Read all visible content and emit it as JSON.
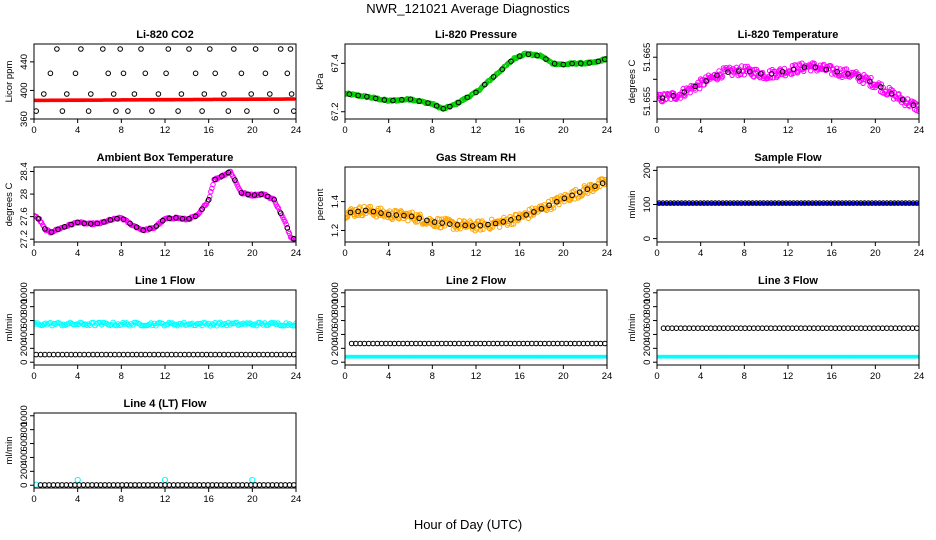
{
  "page": {
    "title": "NWR_121021  Average Diagnostics",
    "xlabel": "Hour of Day (UTC)"
  },
  "colors": {
    "red": "#ff0000",
    "green": "#00cc00",
    "magenta": "#ff00ff",
    "orange": "#ffa500",
    "blue": "#0000ff",
    "cyan": "#00ffff",
    "black": "#000000"
  },
  "chart_data": [
    {
      "id": "li820-co2",
      "type": "scatter",
      "title": "Li-820 CO2",
      "ylabel": "Licor ppm",
      "xlim": [
        0,
        24
      ],
      "ylim": [
        360,
        465
      ],
      "xticks": [
        0,
        4,
        8,
        12,
        16,
        20,
        24
      ],
      "yticks": [
        360,
        400,
        440
      ],
      "series": [
        {
          "name": "sample mean (black)",
          "color": "black",
          "shape": "circle",
          "points": [
            [
              0.2,
              371
            ],
            [
              0.9,
              395
            ],
            [
              1.5,
              424
            ],
            [
              2.1,
              458
            ],
            [
              2.6,
              371
            ],
            [
              3.0,
              395
            ],
            [
              3.8,
              424
            ],
            [
              4.3,
              458
            ],
            [
              5.0,
              371
            ],
            [
              5.2,
              395
            ],
            [
              6.3,
              458
            ],
            [
              6.8,
              424
            ],
            [
              7.3,
              395
            ],
            [
              7.5,
              371
            ],
            [
              7.9,
              458
            ],
            [
              8.2,
              424
            ],
            [
              8.6,
              371
            ],
            [
              9.2,
              395
            ],
            [
              9.8,
              458
            ],
            [
              10.2,
              424
            ],
            [
              10.8,
              371
            ],
            [
              11.4,
              395
            ],
            [
              12.1,
              424
            ],
            [
              12.3,
              458
            ],
            [
              13.2,
              371
            ],
            [
              13.5,
              395
            ],
            [
              14.2,
              458
            ],
            [
              14.8,
              424
            ],
            [
              15.4,
              371
            ],
            [
              15.6,
              395
            ],
            [
              16.1,
              458
            ],
            [
              16.6,
              424
            ],
            [
              17.4,
              395
            ],
            [
              17.8,
              371
            ],
            [
              18.3,
              458
            ],
            [
              19.0,
              424
            ],
            [
              19.5,
              371
            ],
            [
              19.9,
              395
            ],
            [
              20.3,
              458
            ],
            [
              21.2,
              424
            ],
            [
              21.6,
              395
            ],
            [
              22.2,
              371
            ],
            [
              22.6,
              458
            ],
            [
              23.2,
              424
            ],
            [
              23.5,
              458
            ],
            [
              23.6,
              395
            ],
            [
              23.8,
              371
            ]
          ]
        },
        {
          "name": "CO2 (red)",
          "color": "red",
          "shape": "dense-line",
          "from": [
            0,
            386
          ],
          "to": [
            23.8,
            388
          ]
        }
      ]
    },
    {
      "id": "li820-pressure",
      "type": "scatter",
      "title": "Li-820 Pressure",
      "ylabel": "kPa",
      "xlim": [
        0,
        24
      ],
      "ylim": [
        67.17,
        67.48
      ],
      "xticks": [
        0,
        4,
        8,
        12,
        16,
        20,
        24
      ],
      "yticks": [
        67.2,
        67.4
      ],
      "series": [
        {
          "name": "pressure (green)",
          "color": "green",
          "shape": "dense-curve",
          "curve": [
            [
              0,
              67.275
            ],
            [
              2,
              67.262
            ],
            [
              4,
              67.245
            ],
            [
              6,
              67.252
            ],
            [
              8,
              67.232
            ],
            [
              9,
              67.212
            ],
            [
              10,
              67.228
            ],
            [
              12,
              67.28
            ],
            [
              14,
              67.36
            ],
            [
              15.5,
              67.42
            ],
            [
              16.5,
              67.44
            ],
            [
              18,
              67.43
            ],
            [
              19,
              67.4
            ],
            [
              20,
              67.395
            ],
            [
              21,
              67.4
            ],
            [
              22,
              67.4
            ],
            [
              23,
              67.405
            ],
            [
              24,
              67.42
            ]
          ]
        },
        {
          "name": "sample mean (black)",
          "color": "black",
          "shape": "circle-on-curve",
          "curve_ref": "pressure (green)",
          "x": [
            0.4,
            1.2,
            2.0,
            2.8,
            3.6,
            4.4,
            5.2,
            6.0,
            6.8,
            7.6,
            8.4,
            9.0,
            9.6,
            10.4,
            11.2,
            12.0,
            12.8,
            13.6,
            14.4,
            15.2,
            16.0,
            16.8,
            17.6,
            18.4,
            19.2,
            20.0,
            20.8,
            21.6,
            22.4,
            23.2,
            23.8
          ]
        }
      ]
    },
    {
      "id": "li820-temperature",
      "type": "scatter",
      "title": "Li-820 Temperature",
      "ylabel": "degrees C",
      "xlim": [
        0,
        24
      ],
      "ylim": [
        51.651,
        51.668
      ],
      "xticks": [
        0,
        4,
        8,
        12,
        16,
        20,
        24
      ],
      "yticks": [
        51.655,
        51.66,
        51.665
      ],
      "ytick_labels": [
        "51.655",
        "",
        "51.665"
      ],
      "series": [
        {
          "name": "temperature (magenta)",
          "color": "magenta",
          "shape": "noisy-band",
          "curve": [
            [
              0,
              51.6555
            ],
            [
              2,
              51.6565
            ],
            [
              4,
              51.659
            ],
            [
              6,
              51.6615
            ],
            [
              8,
              51.662
            ],
            [
              10,
              51.661
            ],
            [
              12,
              51.662
            ],
            [
              14,
              51.663
            ],
            [
              16,
              51.662
            ],
            [
              18,
              51.661
            ],
            [
              20,
              51.659
            ],
            [
              22,
              51.656
            ],
            [
              24,
              51.6535
            ]
          ],
          "spread": 0.0022
        },
        {
          "name": "sample mean (black)",
          "color": "black",
          "shape": "circle-on-curve",
          "curve_ref": "temperature (magenta)",
          "x": [
            0.5,
            1.5,
            2.5,
            3.5,
            4.5,
            5.5,
            6.5,
            7.5,
            8.5,
            9.5,
            10.5,
            11.5,
            12.5,
            13.5,
            14.5,
            15.5,
            16.5,
            17.5,
            18.5,
            19.5,
            20.5,
            21.5,
            22.5,
            23.5
          ]
        }
      ]
    },
    {
      "id": "ambient-box-temperature",
      "type": "scatter",
      "title": "Ambient Box Temperature",
      "ylabel": "degrees C",
      "xlim": [
        0,
        24
      ],
      "ylim": [
        27.15,
        28.48
      ],
      "xticks": [
        0,
        4,
        8,
        12,
        16,
        20,
        24
      ],
      "yticks": [
        27.2,
        27.6,
        28.0,
        28.4
      ],
      "series": [
        {
          "name": "box temperature (magenta)",
          "color": "magenta",
          "shape": "dense-curve",
          "curve": [
            [
              0,
              27.62
            ],
            [
              0.5,
              27.55
            ],
            [
              1,
              27.38
            ],
            [
              1.5,
              27.32
            ],
            [
              2.5,
              27.4
            ],
            [
              4,
              27.5
            ],
            [
              5,
              27.47
            ],
            [
              6,
              27.48
            ],
            [
              7,
              27.54
            ],
            [
              8,
              27.58
            ],
            [
              9,
              27.45
            ],
            [
              10,
              27.36
            ],
            [
              11,
              27.4
            ],
            [
              12,
              27.56
            ],
            [
              13,
              27.58
            ],
            [
              14,
              27.55
            ],
            [
              15,
              27.62
            ],
            [
              16,
              27.9
            ],
            [
              16.5,
              28.25
            ],
            [
              17.5,
              28.35
            ],
            [
              18,
              28.4
            ],
            [
              19,
              28.02
            ],
            [
              20,
              27.98
            ],
            [
              21,
              28.0
            ],
            [
              22,
              27.9
            ],
            [
              23,
              27.5
            ],
            [
              23.5,
              27.25
            ],
            [
              24,
              27.18
            ]
          ]
        },
        {
          "name": "sample mean (black)",
          "color": "black",
          "shape": "circle-on-curve",
          "curve_ref": "box temperature (magenta)",
          "x": [
            0.4,
            1.0,
            1.6,
            2.2,
            2.8,
            3.4,
            4.0,
            4.6,
            5.2,
            5.8,
            6.4,
            7.0,
            7.6,
            8.2,
            8.8,
            9.4,
            10.0,
            10.6,
            11.2,
            11.8,
            12.4,
            13.0,
            13.6,
            14.2,
            14.8,
            15.4,
            16.0,
            16.6,
            17.2,
            17.8,
            18.4,
            19.0,
            19.6,
            20.2,
            20.8,
            21.4,
            22.0,
            22.6,
            23.2,
            23.8
          ]
        }
      ]
    },
    {
      "id": "gas-stream-rh",
      "type": "scatter",
      "title": "Gas Stream RH",
      "ylabel": "percent",
      "xlim": [
        0,
        24
      ],
      "ylim": [
        1.12,
        1.64
      ],
      "xticks": [
        0,
        4,
        8,
        12,
        16,
        20,
        24
      ],
      "yticks": [
        1.2,
        1.4
      ],
      "series": [
        {
          "name": "RH (orange)",
          "color": "orange",
          "shape": "noisy-band",
          "curve": [
            [
              0,
              1.32
            ],
            [
              2,
              1.34
            ],
            [
              4,
              1.31
            ],
            [
              6,
              1.3
            ],
            [
              8,
              1.26
            ],
            [
              10,
              1.24
            ],
            [
              12,
              1.23
            ],
            [
              14,
              1.25
            ],
            [
              16,
              1.29
            ],
            [
              18,
              1.35
            ],
            [
              20,
              1.42
            ],
            [
              22,
              1.48
            ],
            [
              24,
              1.54
            ]
          ],
          "spread": 0.07
        },
        {
          "name": "sample mean (black)",
          "color": "black",
          "shape": "circle-on-curve",
          "curve_ref": "RH (orange)",
          "x": [
            0.5,
            1.2,
            1.9,
            2.6,
            3.3,
            4.0,
            4.7,
            5.4,
            6.1,
            6.8,
            7.5,
            8.2,
            8.9,
            9.6,
            10.3,
            11.0,
            11.7,
            12.4,
            13.1,
            13.8,
            14.5,
            15.2,
            15.9,
            16.6,
            17.3,
            18.0,
            18.7,
            19.4,
            20.1,
            20.8,
            21.5,
            22.2,
            22.9,
            23.6
          ]
        }
      ]
    },
    {
      "id": "sample-flow",
      "type": "scatter",
      "title": "Sample Flow",
      "ylabel": "ml/min",
      "xlim": [
        0,
        24
      ],
      "ylim": [
        -10,
        210
      ],
      "xticks": [
        0,
        4,
        8,
        12,
        16,
        20,
        24
      ],
      "yticks": [
        0,
        100,
        200
      ],
      "series": [
        {
          "name": "flow (blue)",
          "color": "blue",
          "shape": "dense-line",
          "from": [
            0,
            103
          ],
          "to": [
            24,
            103
          ]
        },
        {
          "name": "sample mean (black)",
          "color": "black",
          "shape": "circle-line",
          "value": 104,
          "x_from": 0.2,
          "x_to": 23.8,
          "count": 70
        }
      ]
    },
    {
      "id": "line-1-flow",
      "type": "scatter",
      "title": "Line 1 Flow",
      "ylabel": "ml/min",
      "xlim": [
        0,
        24
      ],
      "ylim": [
        -40,
        1040
      ],
      "xticks": [
        0,
        4,
        8,
        12,
        16,
        20,
        24
      ],
      "yticks": [
        0,
        200,
        400,
        600,
        800,
        1000
      ],
      "series": [
        {
          "name": "line flow (cyan)",
          "color": "cyan",
          "shape": "circle-band",
          "value": 550,
          "spread": 25,
          "x_from": 0,
          "x_to": 24,
          "count": 160
        },
        {
          "name": "sample mean (black)",
          "color": "black",
          "shape": "circle-line",
          "value": 110,
          "x_from": 0.2,
          "x_to": 23.8,
          "count": 60
        }
      ]
    },
    {
      "id": "line-2-flow",
      "type": "scatter",
      "title": "Line 2 Flow",
      "ylabel": "ml/min",
      "xlim": [
        0,
        24
      ],
      "ylim": [
        -40,
        1040
      ],
      "xticks": [
        0,
        4,
        8,
        12,
        16,
        20,
        24
      ],
      "yticks": [
        0,
        200,
        400,
        600,
        800,
        1000
      ],
      "series": [
        {
          "name": "line flow (cyan)",
          "color": "cyan",
          "shape": "dense-line",
          "from": [
            0,
            80
          ],
          "to": [
            24,
            80
          ]
        },
        {
          "name": "sample mean (black)",
          "color": "black",
          "shape": "circle-line",
          "value": 270,
          "x_from": 0.6,
          "x_to": 23.8,
          "count": 60
        }
      ]
    },
    {
      "id": "line-3-flow",
      "type": "scatter",
      "title": "Line 3 Flow",
      "ylabel": "ml/min",
      "xlim": [
        0,
        24
      ],
      "ylim": [
        -40,
        1040
      ],
      "xticks": [
        0,
        4,
        8,
        12,
        16,
        20,
        24
      ],
      "yticks": [
        0,
        200,
        400,
        600,
        800,
        1000
      ],
      "series": [
        {
          "name": "line flow (cyan)",
          "color": "cyan",
          "shape": "dense-line",
          "from": [
            0,
            80
          ],
          "to": [
            24,
            80
          ]
        },
        {
          "name": "sample mean (black)",
          "color": "black",
          "shape": "circle-line",
          "value": 490,
          "x_from": 0.6,
          "x_to": 23.8,
          "count": 60
        }
      ]
    },
    {
      "id": "line-4-lt-flow",
      "type": "scatter",
      "title": "Line 4 (LT) Flow",
      "ylabel": "ml/min",
      "xlim": [
        0,
        24
      ],
      "ylim": [
        -40,
        1040
      ],
      "xticks": [
        0,
        4,
        8,
        12,
        16,
        20,
        24
      ],
      "yticks": [
        0,
        200,
        400,
        600,
        800,
        1000
      ],
      "series": [
        {
          "name": "line flow (cyan)",
          "color": "cyan",
          "shape": "circle-points",
          "points": [
            [
              0.2,
              8
            ],
            [
              4.0,
              75
            ],
            [
              12.0,
              75
            ],
            [
              20.0,
              75
            ]
          ]
        },
        {
          "name": "sample mean (black)",
          "color": "black",
          "shape": "circle-line",
          "value": 5,
          "x_from": 0.6,
          "x_to": 23.8,
          "count": 60
        }
      ]
    }
  ]
}
